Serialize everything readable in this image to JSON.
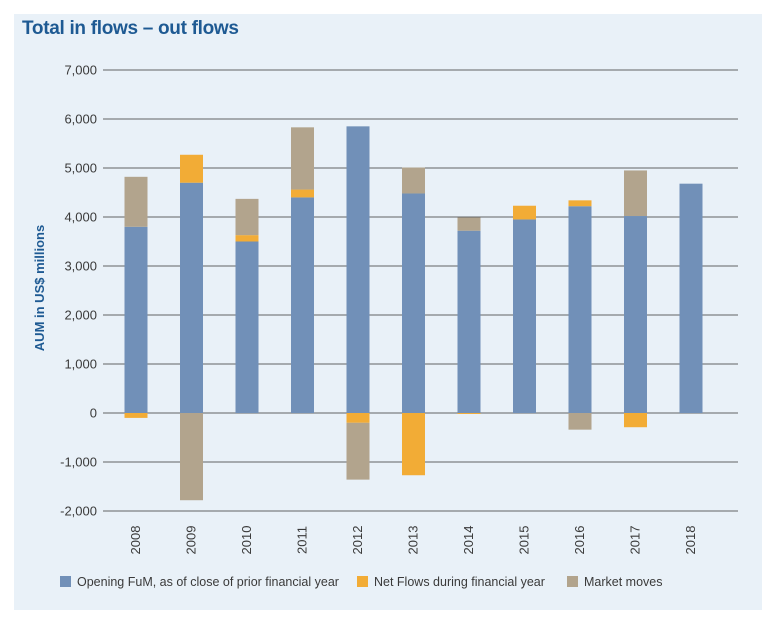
{
  "chart_data": {
    "type": "bar",
    "stacked": true,
    "title": "Total in flows – out flows",
    "xlabel": "",
    "ylabel": "AUM in US$ millions",
    "ylim": [
      -2000,
      7000
    ],
    "yticks": [
      "7,000",
      "6,000",
      "5,000",
      "4,000",
      "3,000",
      "2,000",
      "1,000",
      "0",
      "-1,000",
      "-2,000"
    ],
    "ytick_values": [
      7000,
      6000,
      5000,
      4000,
      3000,
      2000,
      1000,
      0,
      -1000,
      -2000
    ],
    "grid": true,
    "legend_position": "bottom",
    "categories": [
      "2008",
      "2009",
      "2010",
      "2011",
      "2012",
      "2013",
      "2014",
      "2015",
      "2016",
      "2017",
      "2018"
    ],
    "series": [
      {
        "name": "Opening FuM, as of close of prior financial year",
        "color": "#7190b8",
        "values": [
          3800,
          4700,
          3500,
          4400,
          5850,
          4480,
          3720,
          3950,
          4220,
          4020,
          4680
        ]
      },
      {
        "name": "Net Flows during financial year",
        "color": "#f2ac36",
        "values": [
          -100,
          570,
          130,
          160,
          -200,
          -1270,
          -20,
          280,
          120,
          -290,
          0
        ]
      },
      {
        "name": "Market moves",
        "color": "#b2a48d",
        "values": [
          1020,
          -1780,
          740,
          1270,
          -1160,
          530,
          270,
          0,
          -340,
          930,
          0
        ]
      }
    ]
  }
}
